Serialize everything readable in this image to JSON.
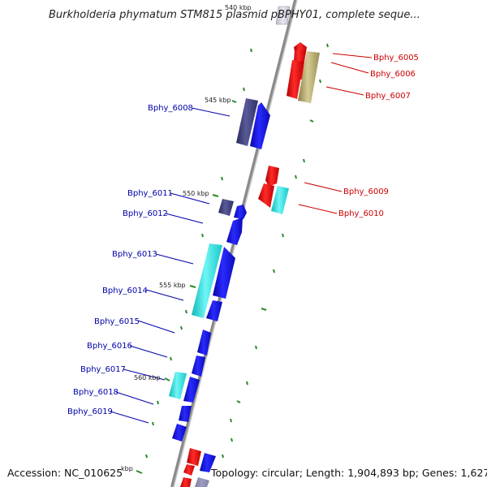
{
  "title": "Burkholderia phymatum STM815 plasmid pBPHY01, complete seque...",
  "footer": {
    "accession": "Accession: NC_010625",
    "topology": "Topology: circular; Length: 1,904,893 bp; Genes: 1,627"
  },
  "ruler": [
    "540 kbp",
    "545 kbp",
    "550 kbp",
    "555 kbp",
    "560 kbp",
    "kbp"
  ],
  "genes_right": [
    "Bphy_6005",
    "Bphy_6006",
    "Bphy_6007",
    "Bphy_6009",
    "Bphy_6010"
  ],
  "genes_left": [
    "Bphy_6008",
    "Bphy_6011",
    "Bphy_6012",
    "Bphy_6013",
    "Bphy_6014",
    "Bphy_6015",
    "Bphy_6016",
    "Bphy_6017",
    "Bphy_6018",
    "Bphy_6019"
  ],
  "colors": {
    "backbone": "#8a8a8a",
    "forward_label": "#0000aa",
    "reverse_label": "#cc0000",
    "tick": "#2a8a2a",
    "blue": "#1010dd",
    "red": "#ee1111",
    "cyan": "#22dddd",
    "navy": "#40407a",
    "olive": "#b8aa70"
  }
}
